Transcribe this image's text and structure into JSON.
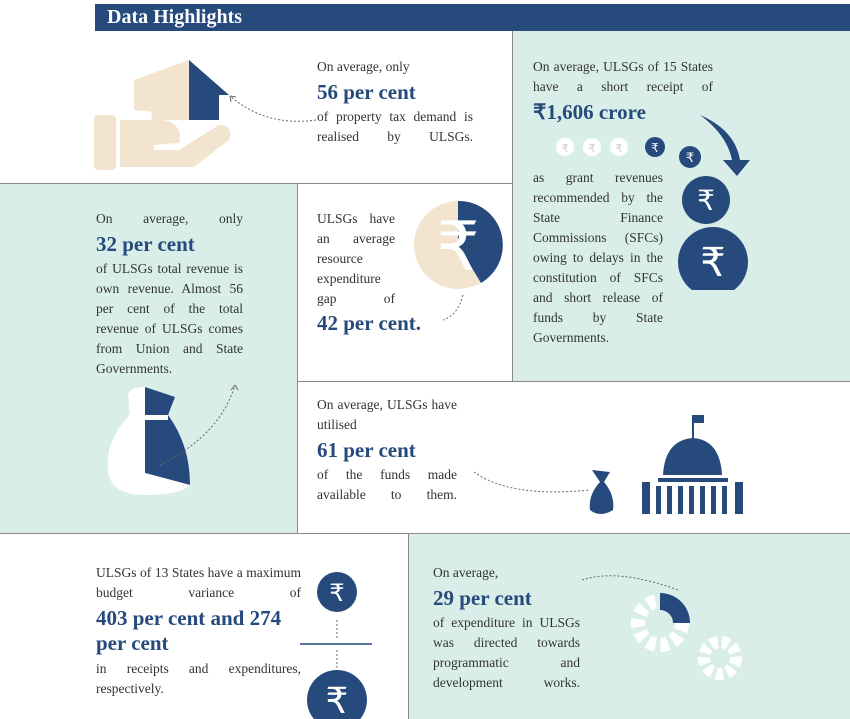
{
  "header": {
    "title": "Data Highlights"
  },
  "colors": {
    "navy": "#264a7c",
    "mint": "#d9eee8",
    "beige": "#f3e4d0"
  },
  "p1": {
    "pre": "On average, only",
    "value": "56 per cent",
    "post": "of property tax demand is realised by ULSGs.",
    "icon": "house-in-hand-icon"
  },
  "p2": {
    "pre": "On average, ULSGs of 15 States have a short receipt of",
    "value": "₹1,606 crore",
    "post": "as grant revenues recommended by the State Finance Commissions (SFCs) owing to delays in the constitution of SFCs and short release of funds by State Governments.",
    "icon": "rupee-coin-icon"
  },
  "p3": {
    "pre": "On average, only",
    "value": "32 per cent",
    "post": "of ULSGs total revenue is own revenue. Almost 56 per cent of the total revenue of ULSGs comes from Union and State Governments.",
    "icon": "money-bag-icon"
  },
  "p4": {
    "pre": "ULSGs have an average resource expenditure gap of",
    "value": "42 per cent.",
    "icon": "rupee-pie-icon"
  },
  "p5": {
    "pre": "On average, ULSGs have utilised",
    "value": "61 per cent",
    "post": "of the funds made available to them.",
    "icon": "government-building-icon"
  },
  "p6": {
    "pre": "ULSGs of 13 States have a maximum budget variance of",
    "value": "403 per cent and 274 per cent",
    "post": "in receipts and expenditures, respectively.",
    "icon": "rupee-coin-icon"
  },
  "p7": {
    "pre": "On average,",
    "value": "29 per cent",
    "post": "of expenditure in ULSGs was directed towards programmatic and development works.",
    "icon": "gears-icon"
  },
  "rupee": "₹"
}
